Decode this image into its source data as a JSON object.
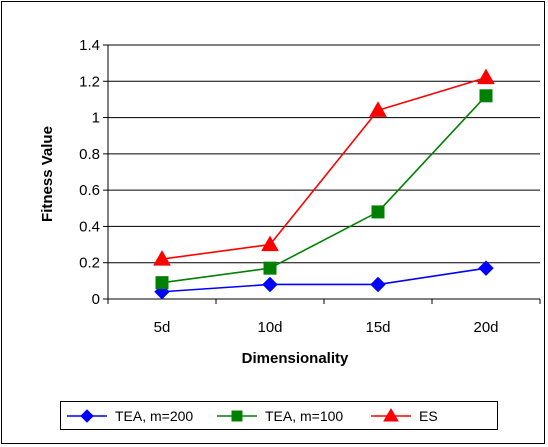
{
  "chart_data": {
    "type": "line",
    "categories": [
      "5d",
      "10d",
      "15d",
      "20d"
    ],
    "series": [
      {
        "name": "TEA, m=200",
        "values": [
          0.04,
          0.08,
          0.08,
          0.17
        ],
        "color": "#0000ff",
        "marker": "diamond"
      },
      {
        "name": "TEA, m=100",
        "values": [
          0.09,
          0.17,
          0.48,
          1.12
        ],
        "color": "#008000",
        "marker": "square"
      },
      {
        "name": "ES",
        "values": [
          0.22,
          0.3,
          1.04,
          1.22
        ],
        "color": "#ff0000",
        "marker": "triangle"
      }
    ],
    "xlabel": "Dimensionality",
    "ylabel": "Fitness Value",
    "ylim": [
      0,
      1.4
    ],
    "yticks": [
      0,
      0.2,
      0.4,
      0.6,
      0.8,
      1,
      1.2,
      1.4
    ],
    "ytick_labels": [
      "0",
      "0.2",
      "0.4",
      "0.6",
      "0.8",
      "1",
      "1.2",
      "1.4"
    ],
    "grid": "horizontal",
    "legend_position": "bottom"
  }
}
